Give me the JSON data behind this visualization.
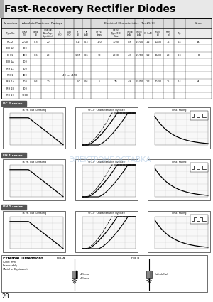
{
  "title": "Fast-Recovery Rectifier Diodes",
  "bg_color": "#ffffff",
  "table_rows": [
    [
      "RC 2",
      "2000",
      "0.3",
      "20",
      "",
      "",
      "0.2",
      "0.3",
      "110",
      "3000",
      "4.8",
      "1.5/10",
      "1.2",
      "10/30",
      "15",
      "0.4",
      "A"
    ],
    [
      "EH 1Z",
      "200",
      "",
      "",
      "",
      "",
      "",
      "",
      "",
      "",
      "",
      "",
      "",
      "",
      "",
      "",
      ""
    ],
    [
      "EH 1",
      "400",
      "0.6",
      "20",
      "",
      "",
      "1.35",
      "0.6",
      "10",
      "2000",
      "4.8",
      "1.5/10",
      "1.2",
      "10/30",
      "20",
      "0.3",
      "B"
    ],
    [
      "EH 1A",
      "600",
      "",
      "",
      "",
      "",
      "",
      "",
      "",
      "",
      "",
      "",
      "",
      "",
      "",
      "",
      ""
    ],
    [
      "RH 1Z",
      "200",
      "",
      "",
      "",
      "",
      "",
      "",
      "",
      "",
      "",
      "",
      "",
      "",
      "",
      "",
      ""
    ],
    [
      "RH 1",
      "400",
      "",
      "",
      "",
      "-40 to +150",
      "",
      "",
      "",
      "",
      "",
      "",
      "",
      "",
      "",
      "",
      ""
    ],
    [
      "RH 1A",
      "600",
      "0.6",
      "20",
      "",
      "",
      "1.0",
      "0.6",
      "5",
      "70",
      "4.8",
      "1.5/10",
      "1.2",
      "10/30",
      "15",
      "0.4",
      "A"
    ],
    [
      "RH 1B",
      "800",
      "",
      "",
      "",
      "",
      "",
      "",
      "",
      "",
      "",
      "",
      "",
      "",
      "",
      "",
      ""
    ],
    [
      "RH 1C",
      "1000",
      "",
      "",
      "",
      "",
      "",
      "",
      "",
      "",
      "",
      "",
      "",
      "",
      "",
      "",
      ""
    ]
  ],
  "section_labels": [
    "RC 2 series",
    "EH 1 series",
    "RH 1 series"
  ],
  "graph_titles_1": [
    "Ta vs. Iout  Derating",
    "Vr—Ir  Characteristics (Typical)",
    "Irms  Rating"
  ],
  "graph_titles_2": [
    "Ta vs. Iout  Derating",
    "Vr—Ir  Characteristics (Typical)",
    "Irms  Rating"
  ],
  "graph_titles_3": [
    "Ta vs. Iout  Derating",
    "Vr—Ir  Characteristics (Typical)",
    "Irms  Rating"
  ],
  "page_number": "28",
  "watermark": "ЭЛЕКТРОНПОСТАВКА",
  "red_color": "#cc0000",
  "section_label_color": "#000000",
  "grid_color": "#bbbbbb"
}
